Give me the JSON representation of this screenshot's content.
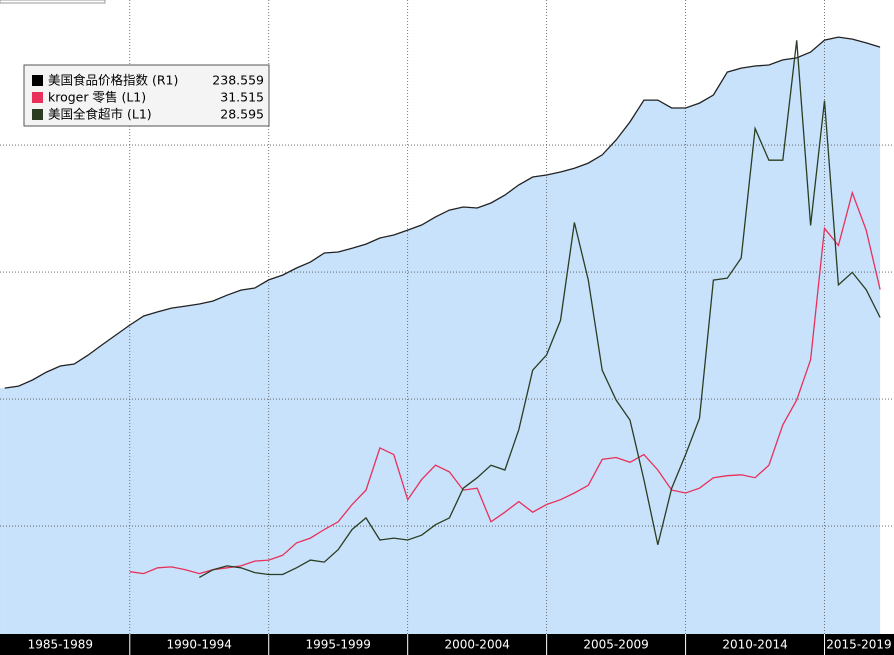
{
  "chart_data": {
    "type": "line",
    "categories": [
      "1985-1989",
      "1990-1994",
      "1995-1999",
      "2000-2004",
      "2005-2009",
      "2010-2014",
      "2015-2019"
    ],
    "x": [
      1985.5,
      1986,
      1986.5,
      1987,
      1987.5,
      1988,
      1988.5,
      1989,
      1989.5,
      1990,
      1990.5,
      1991,
      1991.5,
      1992,
      1992.5,
      1993,
      1993.5,
      1994,
      1994.5,
      1995,
      1995.5,
      1996,
      1996.5,
      1997,
      1997.5,
      1998,
      1998.5,
      1999,
      1999.5,
      2000,
      2000.5,
      2001,
      2001.5,
      2002,
      2002.5,
      2003,
      2003.5,
      2004,
      2004.5,
      2005,
      2005.5,
      2006,
      2006.5,
      2007,
      2007.5,
      2008,
      2008.5,
      2009,
      2009.5,
      2010,
      2010.5,
      2011,
      2011.5,
      2012,
      2012.5,
      2013,
      2013.5,
      2014,
      2014.5,
      2015,
      2015.5,
      2016,
      2016.5,
      2017
    ],
    "xlim": [
      1985.33,
      2017.5
    ],
    "xticks": [
      1990,
      1995,
      2000,
      2005,
      2010,
      2015
    ],
    "ylim": [
      -4.4,
      61.7
    ],
    "y2lim": [
      7.5,
      257.1
    ],
    "y2ticks": [
      50,
      100,
      150,
      200
    ],
    "grid": true,
    "legend": "upper left",
    "series": [
      {
        "name": "美国食品价格指数 (R1)",
        "color": "#000000",
        "fill": "#c9e2fb",
        "line": "#222222",
        "axis": "y2",
        "area": true,
        "values": [
          104.3,
          105.1,
          107.5,
          110.6,
          113.0,
          113.8,
          117.3,
          121.3,
          125.2,
          129.1,
          132.7,
          134.3,
          135.8,
          136.6,
          137.4,
          138.6,
          140.9,
          142.9,
          143.7,
          146.9,
          148.8,
          151.6,
          153.9,
          157.5,
          157.9,
          159.4,
          161.0,
          163.4,
          164.6,
          166.5,
          168.5,
          171.7,
          174.4,
          175.6,
          175.2,
          177.2,
          180.3,
          184.3,
          187.4,
          188.2,
          189.4,
          190.9,
          192.9,
          196.1,
          202.0,
          209.1,
          217.7,
          217.7,
          214.6,
          214.6,
          216.5,
          219.7,
          228.7,
          230.3,
          231.1,
          231.5,
          233.5,
          234.3,
          236.6,
          241.3,
          242.5,
          241.7,
          240.2,
          238.559
        ]
      },
      {
        "name": "kroger 零售 (L1)",
        "color": "#e8305a",
        "axis": "y",
        "values": [
          null,
          null,
          null,
          null,
          null,
          null,
          null,
          null,
          null,
          2.1,
          1.9,
          2.5,
          2.6,
          2.3,
          1.9,
          2.3,
          2.5,
          2.7,
          3.2,
          3.3,
          3.8,
          5.1,
          5.6,
          6.5,
          7.3,
          9.1,
          10.6,
          15.0,
          14.3,
          9.6,
          11.7,
          13.2,
          12.5,
          10.6,
          10.8,
          7.3,
          8.3,
          9.4,
          8.3,
          9.1,
          9.6,
          10.3,
          11.1,
          13.8,
          14.0,
          13.5,
          14.3,
          12.7,
          10.6,
          10.3,
          10.8,
          11.9,
          12.1,
          12.2,
          11.9,
          13.2,
          17.4,
          20.0,
          24.2,
          37.9,
          36.1,
          41.6,
          37.7,
          31.515
        ]
      },
      {
        "name": "美国全食超市 (L1)",
        "color": "#2a3d22",
        "axis": "y",
        "values": [
          null,
          null,
          null,
          null,
          null,
          null,
          null,
          null,
          null,
          null,
          null,
          null,
          null,
          null,
          1.5,
          2.3,
          2.7,
          2.5,
          2.0,
          1.8,
          1.8,
          2.5,
          3.3,
          3.1,
          4.4,
          6.5,
          7.7,
          5.4,
          5.6,
          5.4,
          5.9,
          7.0,
          7.7,
          10.8,
          11.9,
          13.2,
          12.7,
          16.9,
          23.1,
          24.7,
          28.3,
          38.5,
          32.5,
          23.1,
          20.0,
          17.9,
          11.7,
          4.9,
          10.8,
          14.3,
          18.1,
          32.5,
          32.7,
          34.8,
          48.3,
          45.0,
          45.0,
          57.5,
          38.2,
          51.2,
          32.0,
          33.3,
          31.5,
          28.595
        ]
      }
    ]
  }
}
